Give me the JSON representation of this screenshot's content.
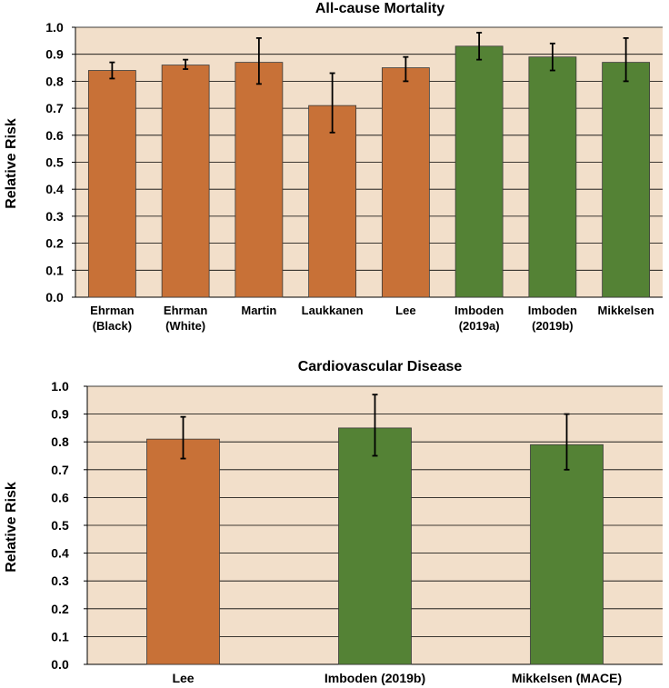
{
  "chart_data": [
    {
      "type": "bar",
      "title": "All-cause Mortality",
      "xlabel": "",
      "ylabel": "Relative Risk",
      "ylim": [
        0,
        1.0
      ],
      "yticks": [
        "0.0",
        "0.1",
        "0.2",
        "0.3",
        "0.4",
        "0.5",
        "0.6",
        "0.7",
        "0.8",
        "0.9",
        "1.0"
      ],
      "grid": true,
      "categories": [
        [
          "Ehrman",
          "(Black)"
        ],
        [
          "Ehrman",
          "(White)"
        ],
        [
          "Martin"
        ],
        [
          "Laukkanen"
        ],
        [
          "Lee"
        ],
        [
          "Imboden",
          "(2019a)"
        ],
        [
          "Imboden",
          "(2019b)"
        ],
        [
          "Mikkelsen"
        ]
      ],
      "values": [
        0.84,
        0.86,
        0.87,
        0.71,
        0.85,
        0.93,
        0.89,
        0.87
      ],
      "error_low": [
        0.81,
        0.845,
        0.79,
        0.61,
        0.8,
        0.88,
        0.84,
        0.8
      ],
      "error_high": [
        0.87,
        0.88,
        0.96,
        0.83,
        0.89,
        0.98,
        0.94,
        0.96
      ],
      "colors": [
        "#c87137",
        "#c87137",
        "#c87137",
        "#c87137",
        "#c87137",
        "#548235",
        "#548235",
        "#548235"
      ]
    },
    {
      "type": "bar",
      "title": "Cardiovascular Disease",
      "xlabel": "",
      "ylabel": "Relative Risk",
      "ylim": [
        0,
        1.0
      ],
      "yticks": [
        "0.0",
        "0.1",
        "0.2",
        "0.3",
        "0.4",
        "0.5",
        "0.6",
        "0.7",
        "0.8",
        "0.9",
        "1.0"
      ],
      "grid": true,
      "categories": [
        [
          "Lee"
        ],
        [
          "Imboden (2019b)"
        ],
        [
          "Mikkelsen (MACE)"
        ]
      ],
      "values": [
        0.81,
        0.85,
        0.79
      ],
      "error_low": [
        0.74,
        0.75,
        0.7
      ],
      "error_high": [
        0.89,
        0.97,
        0.9
      ],
      "colors": [
        "#c87137",
        "#548235",
        "#548235"
      ]
    }
  ],
  "style": {
    "plot_background": "#f2dfca",
    "grid_color": "#000000",
    "bar_edge": "#3a3a3a"
  }
}
